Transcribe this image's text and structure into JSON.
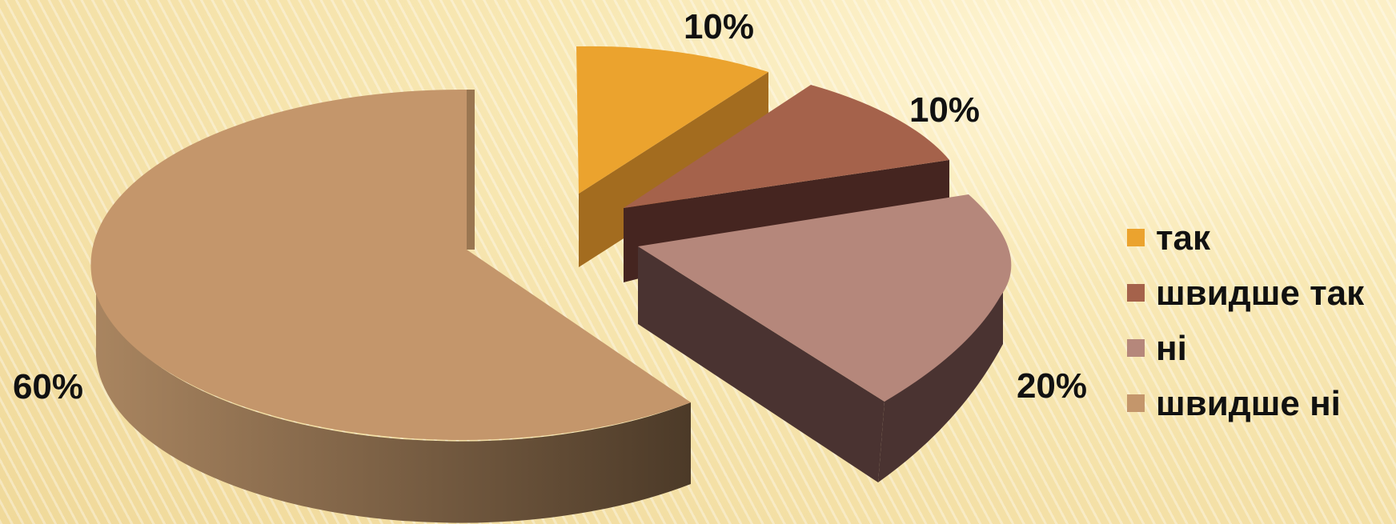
{
  "chart_data": {
    "type": "pie",
    "style": "3d-exploded",
    "slices": [
      {
        "label": "так",
        "value": 10,
        "display": "10%",
        "color": "#eba32e",
        "side_color": "#a36c1f"
      },
      {
        "label": "швидше так",
        "value": 10,
        "display": "10%",
        "color": "#a5624b",
        "side_color": "#452520"
      },
      {
        "label": "ні",
        "value": 20,
        "display": "20%",
        "color": "#b5877b",
        "side_color": "#4a3331"
      },
      {
        "label": "швидше ні",
        "value": 60,
        "display": "60%",
        "color": "#c4966b",
        "side_color": "#7a5c3c"
      }
    ],
    "legend_position": "right"
  }
}
